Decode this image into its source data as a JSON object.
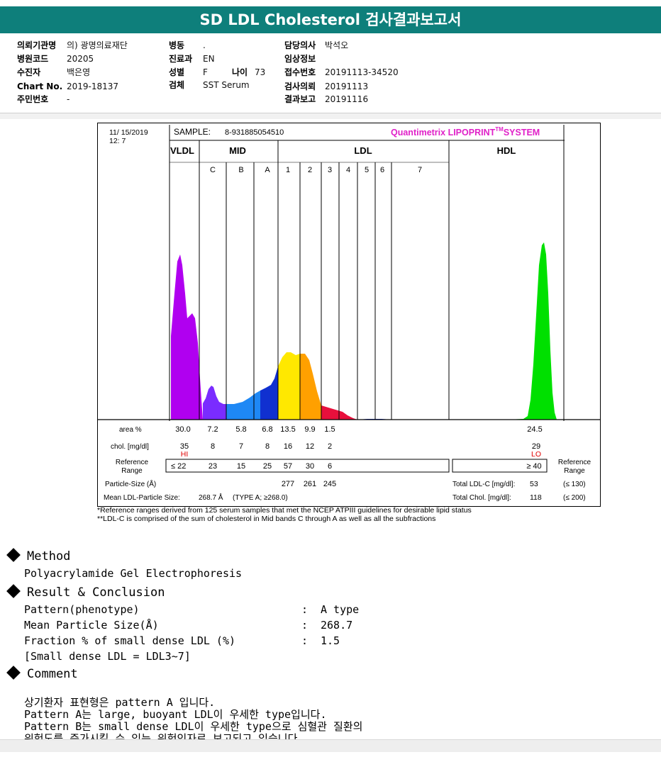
{
  "title": "SD LDL Cholesterol 검사결과보고서",
  "patient": {
    "hospital_label": "의뢰기관명",
    "hospital_value": "의) 광명의료재단",
    "code_label": "병원코드",
    "code_value": "20205",
    "patient_label": "수진자",
    "patient_value": "백은영",
    "chart_label": "Chart No.",
    "chart_value": "2019-18137",
    "rrn_label": "주민번호",
    "rrn_value": "-",
    "ward_label": "병동",
    "ward_value": ".",
    "dept_label": "진료과",
    "dept_value": "EN",
    "sex_label": "성별",
    "sex_value": "F",
    "age_label": "나이",
    "age_value": "73",
    "specimen_label": "검체",
    "specimen_value": "SST Serum",
    "doctor_label": "담당의사",
    "doctor_value": "박석오",
    "clinical_label": "임상정보",
    "clinical_value": "",
    "receipt_label": "접수번호",
    "receipt_value": "20191113-34520",
    "request_label": "검사의뢰",
    "request_value": "20191113",
    "report_label": "결과보고",
    "report_value": "20191116"
  },
  "report": {
    "date": "11/ 15/2019",
    "time": "12: 7",
    "sample_label": "SAMPLE:",
    "sample_id": "8-931885054510",
    "system_brand": "Quantimetrix LIPOPRINT",
    "system_tm": "TM",
    "system_suffix": "SYSTEM",
    "brand_color": "#e020c8",
    "fraction_groups": [
      "VLDL",
      "MID",
      "LDL",
      "HDL"
    ],
    "fraction_bands": [
      "C",
      "B",
      "A",
      "1",
      "2",
      "3",
      "4",
      "5",
      "6",
      "7"
    ],
    "row_labels": {
      "area": "area %",
      "chol": "chol. [mg/dl]",
      "ref": "Reference Range",
      "ref_right": "Reference Range",
      "particle_size": "Particle-Size (Å)",
      "mean_ldl": "Mean LDL-Particle Size:",
      "mean_ldl_value": "268.7 Å",
      "mean_ldl_type": "(TYPE A; ≥268.0)",
      "total_ldlc": "Total LDL-C [mg/dl]:",
      "total_ldlc_value": "53",
      "total_ldlc_ref": "(≤ 130)",
      "total_chol": "Total Chol. [mg/dl]:",
      "total_chol_value": "118",
      "total_chol_ref": "(≤ 200)"
    },
    "area": [
      "30.0",
      "7.2",
      "5.8",
      "6.8",
      "13.5",
      "9.9",
      "1.5",
      "24.5"
    ],
    "chol": [
      "35",
      "8",
      "7",
      "8",
      "16",
      "12",
      "2",
      "29"
    ],
    "flags": [
      "HI",
      "LO"
    ],
    "ref_range": [
      "≤ 22",
      "23",
      "15",
      "25",
      "57",
      "30",
      "6",
      "≥ 40"
    ],
    "particle_sizes": [
      "277",
      "261",
      "245"
    ],
    "colors": {
      "vldl": "#b000f0",
      "mid_c": "#7a2cff",
      "mid_b": "#1e88f5",
      "mid_a": "#1030d0",
      "ldl1": "#ffe800",
      "ldl2": "#ffa000",
      "ldl3": "#e8103c",
      "hdl": "#00e000",
      "flag": "#e00000"
    }
  },
  "chart_data": {
    "type": "area",
    "title": "",
    "series": [
      {
        "name": "VLDL",
        "area_percent": 30.0,
        "chol_mg_dl": 35
      },
      {
        "name": "MID C",
        "area_percent": 7.2,
        "chol_mg_dl": 8
      },
      {
        "name": "MID B",
        "area_percent": 5.8,
        "chol_mg_dl": 7
      },
      {
        "name": "MID A",
        "area_percent": 6.8,
        "chol_mg_dl": 8
      },
      {
        "name": "LDL 1",
        "area_percent": 13.5,
        "chol_mg_dl": 16
      },
      {
        "name": "LDL 2",
        "area_percent": 9.9,
        "chol_mg_dl": 12
      },
      {
        "name": "LDL 3",
        "area_percent": 1.5,
        "chol_mg_dl": 2
      },
      {
        "name": "HDL",
        "area_percent": 24.5,
        "chol_mg_dl": 29
      }
    ],
    "grid": false
  },
  "footnotes": [
    "*Reference ranges derived from 125 serum samples that met the NCEP ATPIII guidelines for desirable lipid status",
    "**LDL-C is comprised of the sum of cholesterol in Mid bands C through A as well as all the subfractions"
  ],
  "method": {
    "heading": "Method",
    "text": "Polyacrylamide Gel Electrophoresis"
  },
  "result": {
    "heading": "Result & Conclusion",
    "rows": [
      {
        "label": "Pattern(phenotype)",
        "value": "A type"
      },
      {
        "label": "Mean Particle Size(Å)",
        "value": "268.7"
      },
      {
        "label": "Fraction % of small dense LDL (%)",
        "value": "1.5"
      }
    ],
    "note": "[Small dense LDL = LDL3~7]"
  },
  "comment": {
    "heading": "Comment",
    "lines": [
      "상기환자 표현형은 pattern A 입니다.",
      "Pattern A는 large, buoyant LDL이 우세한 type입니다.",
      "Pattern B는 small dense LDL이 우세한 type으로 심혈관 질환의",
      "위험도를 증가시킬 수 있는 위험인자로 보고되고 있습니다."
    ]
  }
}
